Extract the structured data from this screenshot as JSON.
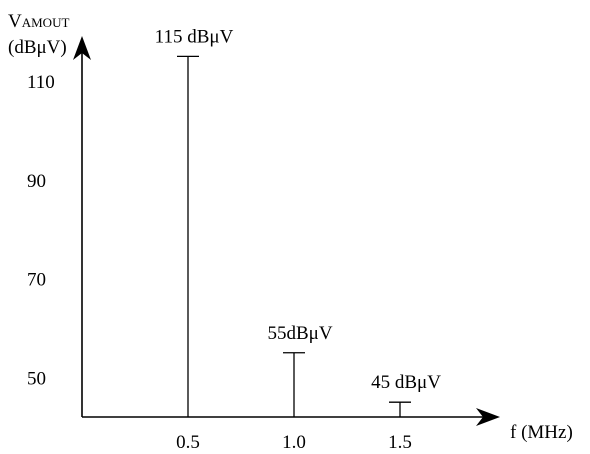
{
  "chart_data": {
    "type": "bar",
    "style": "spectrum-lines",
    "ylabel": {
      "main": "V",
      "subscript": "AMOUT",
      "unit": "(dBμV)"
    },
    "xlabel": "f (MHz)",
    "x_ticks": [
      "0.5",
      "1.0",
      "1.5"
    ],
    "y_ticks": [
      "50",
      "70",
      "90",
      "110"
    ],
    "ylim": [
      42,
      130
    ],
    "xlim": [
      0,
      2.3
    ],
    "grid": false,
    "series": [
      {
        "points": [
          {
            "x": 0.5,
            "y": 115,
            "label": "115 dBμV"
          },
          {
            "x": 1.0,
            "y": 55,
            "label": "55dBμV"
          },
          {
            "x": 1.5,
            "y": 45,
            "label": "45 dBμV"
          }
        ]
      }
    ],
    "colors": {
      "line": "#000000",
      "background": "#ffffff"
    }
  }
}
